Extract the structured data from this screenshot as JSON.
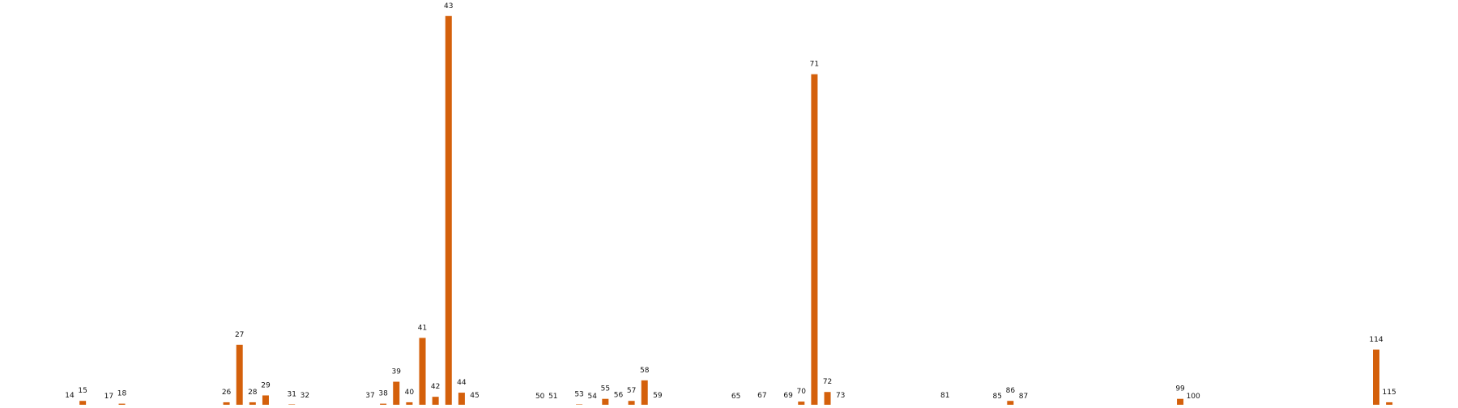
{
  "chart_data": {
    "type": "bar",
    "title": "",
    "xlabel": "",
    "ylabel": "",
    "grid": false,
    "legend": "none",
    "color": "#d4600b",
    "ylim": [
      0,
      56.5
    ],
    "categories": [
      "14",
      "15",
      "17",
      "18",
      "26",
      "27",
      "28",
      "29",
      "31",
      "32",
      "37",
      "38",
      "39",
      "40",
      "41",
      "42",
      "43",
      "44",
      "45",
      "50",
      "51",
      "53",
      "54",
      "55",
      "56",
      "57",
      "58",
      "59",
      "65",
      "67",
      "69",
      "70",
      "71",
      "72",
      "73",
      "81",
      "85",
      "86",
      "87",
      "99",
      "100",
      "114",
      "115"
    ],
    "values": [
      0.1,
      0.8,
      0,
      0.4,
      0.6,
      9,
      0.6,
      1.6,
      0.3,
      0.1,
      0.1,
      0.4,
      3.6,
      0.6,
      10,
      1.4,
      57,
      2,
      0.1,
      0,
      0,
      0.3,
      0,
      1.1,
      0.2,
      0.8,
      3.8,
      0.1,
      0,
      0.1,
      0.1,
      0.7,
      48.5,
      2.1,
      0.1,
      0.1,
      0,
      0.8,
      0,
      1.1,
      0,
      8.3,
      0.6
    ]
  }
}
